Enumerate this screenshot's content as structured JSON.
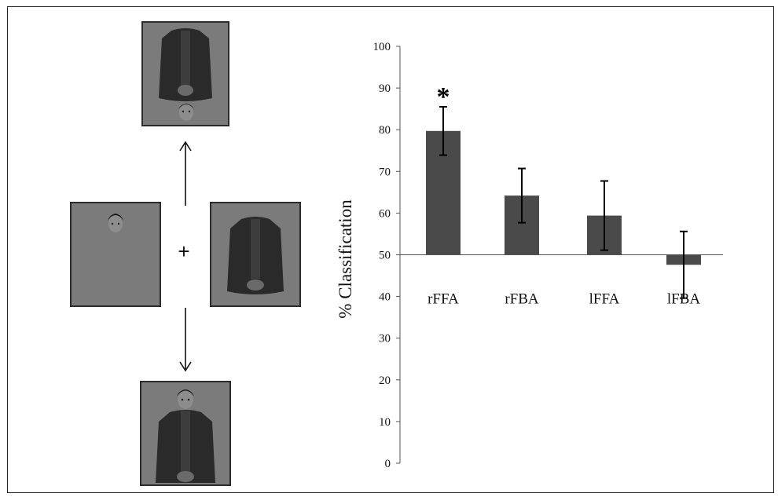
{
  "stimulus": {
    "fixation": "+"
  },
  "chart_data": {
    "type": "bar",
    "categories": [
      "rFFA",
      "rFBA",
      "lFFA",
      "lFBA"
    ],
    "values": [
      79.7,
      64.2,
      59.4,
      47.6
    ],
    "errors": [
      5.8,
      6.5,
      8.3,
      8.0
    ],
    "ylabel": "% Classification",
    "ylim": [
      0,
      100
    ],
    "yticks": [
      0,
      10,
      20,
      30,
      40,
      50,
      60,
      70,
      80,
      90,
      100
    ],
    "baseline": 50,
    "significance": [
      {
        "category": "rFFA",
        "marker": "*"
      }
    ],
    "bar_color": "#4a4a4a",
    "grid": false,
    "legend": "none"
  }
}
